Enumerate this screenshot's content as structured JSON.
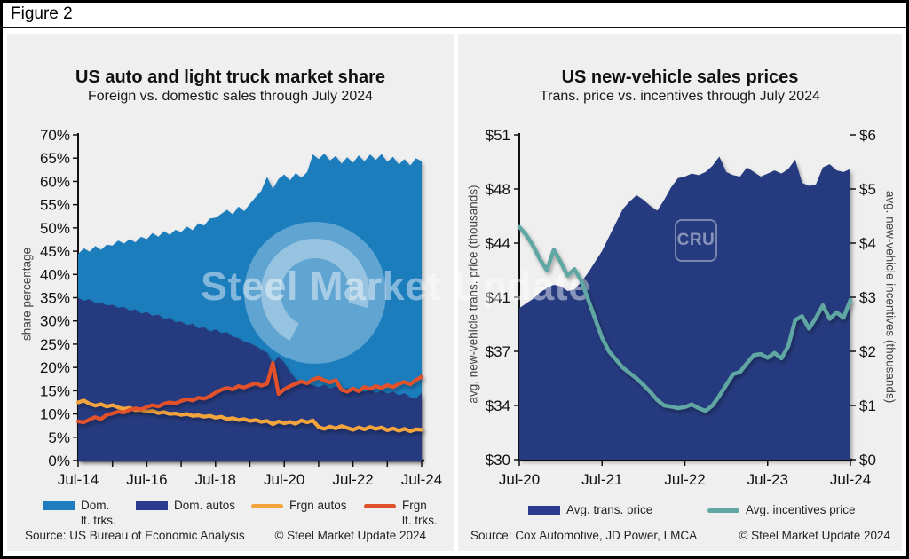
{
  "figure": {
    "label": "Figure 2"
  },
  "watermark": {
    "text": "Steel Market Update",
    "cru_label": "CRU"
  },
  "colors": {
    "panel_bg": "#efefef",
    "dom_lt_trks": "#1e7dbd",
    "dom_autos": "#263a7f",
    "frgn_autos": "#f4a43c",
    "frgn_lt_trks": "#e2512c",
    "trans_price": "#263a7f",
    "incentives": "#60a6a3",
    "axis": "#111111"
  },
  "chart_data": [
    {
      "type": "area",
      "title": "US auto and light truck market share",
      "subtitle": "Foreign vs. domestic sales through July 2024",
      "ylabel": "share percentage",
      "ylim": [
        0,
        70
      ],
      "x_range": [
        "Jul-14",
        "Jul-24"
      ],
      "x_tick_labels": [
        "Jul-14",
        "Jul-16",
        "Jul-18",
        "Jul-20",
        "Jul-22",
        "Jul-24"
      ],
      "y_tick_labels": [
        "0%",
        "5%",
        "10%",
        "15%",
        "20%",
        "25%",
        "30%",
        "35%",
        "40%",
        "45%",
        "50%",
        "55%",
        "60%",
        "65%",
        "70%"
      ],
      "series": [
        {
          "name": "Dom. lt. trks.",
          "kind": "area",
          "color": "#1e7dbd",
          "values": [
            44.4,
            45.6,
            44.9,
            46.1,
            45.3,
            46.4,
            46.2,
            47.3,
            46.6,
            47.6,
            46.9,
            48.1,
            47.6,
            48.9,
            48.1,
            49.3,
            48.5,
            49.6,
            49.1,
            50.3,
            49.5,
            51.0,
            50.5,
            52.0,
            52.2,
            53.0,
            53.9,
            52.9,
            54.6,
            53.6,
            55.2,
            56.6,
            58.0,
            61.0,
            58.4,
            60.5,
            61.5,
            60.2,
            61.8,
            60.8,
            62.0,
            65.8,
            64.8,
            66.0,
            64.5,
            65.5,
            63.8,
            65.2,
            64.0,
            65.6,
            64.3,
            65.8,
            64.6,
            65.9,
            64.2,
            65.3,
            63.6,
            64.8,
            63.4,
            65.0,
            64.3
          ]
        },
        {
          "name": "Dom. autos",
          "kind": "area",
          "color": "#263a7f",
          "values": [
            35.0,
            34.3,
            34.7,
            33.8,
            34.0,
            33.3,
            33.5,
            32.8,
            33.0,
            32.2,
            32.5,
            31.6,
            31.9,
            31.1,
            31.4,
            30.4,
            30.7,
            29.7,
            29.9,
            29.1,
            29.4,
            28.4,
            28.7,
            27.7,
            28.2,
            27.4,
            27.6,
            26.6,
            26.3,
            25.5,
            25.2,
            24.6,
            23.8,
            23.2,
            20.8,
            22.4,
            21.0,
            19.0,
            17.5,
            16.8,
            16.5,
            16.2,
            15.8,
            16.3,
            15.5,
            16.0,
            15.2,
            15.6,
            14.9,
            15.4,
            14.7,
            15.2,
            14.5,
            15.0,
            14.4,
            14.8,
            14.0,
            14.5,
            13.6,
            13.3,
            14.5
          ]
        },
        {
          "name": "Frgn autos",
          "kind": "line",
          "color": "#f4a43c",
          "values": [
            12.5,
            12.9,
            12.2,
            11.8,
            12.1,
            11.6,
            11.9,
            11.4,
            11.1,
            11.3,
            10.8,
            10.9,
            10.5,
            10.7,
            10.2,
            10.4,
            10.0,
            10.1,
            9.8,
            10.0,
            9.6,
            9.7,
            9.4,
            9.6,
            9.2,
            9.4,
            8.9,
            9.1,
            8.7,
            8.9,
            8.5,
            8.7,
            8.3,
            8.5,
            7.8,
            8.4,
            8.0,
            8.3,
            7.9,
            8.6,
            8.2,
            8.6,
            7.2,
            6.8,
            7.3,
            6.9,
            7.4,
            7.0,
            6.6,
            7.1,
            6.7,
            7.2,
            6.8,
            7.1,
            6.5,
            6.9,
            6.4,
            6.8,
            6.3,
            6.7,
            6.6
          ]
        },
        {
          "name": "Frgn lt. trks.",
          "kind": "line",
          "color": "#e2512c",
          "values": [
            8.4,
            8.2,
            8.8,
            9.3,
            8.9,
            9.8,
            10.1,
            10.5,
            10.3,
            10.9,
            11.2,
            11.0,
            11.5,
            11.9,
            11.6,
            12.2,
            12.5,
            12.3,
            12.8,
            13.2,
            12.9,
            13.5,
            13.3,
            13.8,
            14.6,
            15.2,
            15.6,
            15.3,
            16.0,
            15.7,
            16.2,
            16.6,
            16.1,
            16.5,
            21.0,
            14.3,
            15.3,
            16.0,
            16.5,
            17.0,
            16.6,
            17.4,
            17.8,
            17.2,
            16.8,
            17.3,
            15.2,
            14.8,
            15.5,
            14.9,
            15.8,
            15.4,
            16.0,
            15.6,
            16.2,
            15.8,
            16.5,
            16.9,
            16.4,
            17.3,
            18.0
          ]
        }
      ],
      "legend": [
        {
          "label": "Dom.\nlt. trks.",
          "color": "#1e7dbd",
          "kind": "area"
        },
        {
          "label": "Dom. autos",
          "color": "#2b3c8e",
          "kind": "area"
        },
        {
          "label": "Frgn autos",
          "color": "#f4a43c",
          "kind": "line"
        },
        {
          "label": "Frgn\nlt. trks.",
          "color": "#e2512c",
          "kind": "line"
        }
      ],
      "source": "Source: US Bureau of Economic Analysis",
      "copyright": "© Steel Market Update 2024"
    },
    {
      "type": "area",
      "title": "US new-vehicle sales prices",
      "subtitle": "Trans. price vs. incentives through July 2024",
      "ylabel_left": "avg. new-vehicle trans. price (thousands)",
      "ylabel_right": "avg. new-vehicle incentives (thousands)",
      "ylim_left": [
        30,
        51
      ],
      "ylim_right": [
        0,
        6
      ],
      "x_range": [
        "Jul-20",
        "Jul-24"
      ],
      "x_tick_labels": [
        "Jul-20",
        "Jul-21",
        "Jul-22",
        "Jul-23",
        "Jul-24"
      ],
      "y_tick_labels_left": [
        "$30",
        "$34",
        "$37",
        "$41",
        "$44",
        "$48",
        "$51"
      ],
      "y_tick_labels_right": [
        "$0",
        "$1",
        "$2",
        "$3",
        "$4",
        "$5",
        "$6"
      ],
      "series": [
        {
          "name": "Avg. trans. price",
          "kind": "area",
          "axis": "left",
          "color": "#263a7f",
          "values": [
            39.8,
            40.1,
            40.4,
            40.8,
            41.1,
            41.3,
            41.2,
            40.9,
            41.0,
            41.5,
            42.1,
            42.8,
            43.5,
            44.4,
            45.3,
            46.2,
            46.7,
            47.1,
            46.8,
            46.4,
            46.1,
            46.8,
            47.6,
            48.2,
            48.3,
            48.5,
            48.4,
            48.6,
            49.0,
            49.6,
            48.6,
            48.4,
            48.3,
            48.9,
            48.6,
            48.3,
            48.5,
            48.7,
            48.5,
            48.8,
            49.4,
            47.9,
            47.7,
            47.8,
            48.9,
            49.1,
            48.7,
            48.6,
            48.8
          ]
        },
        {
          "name": "Avg. incentives price",
          "kind": "line",
          "axis": "right",
          "color": "#60a6a3",
          "values": [
            4.3,
            4.15,
            3.95,
            3.7,
            3.5,
            3.88,
            3.65,
            3.4,
            3.52,
            3.3,
            2.95,
            2.6,
            2.25,
            2.0,
            1.85,
            1.7,
            1.6,
            1.5,
            1.38,
            1.25,
            1.1,
            1.0,
            0.98,
            0.95,
            0.97,
            1.02,
            0.95,
            0.9,
            1.0,
            1.18,
            1.38,
            1.58,
            1.62,
            1.78,
            1.93,
            1.95,
            1.88,
            1.97,
            1.87,
            2.1,
            2.58,
            2.65,
            2.42,
            2.62,
            2.85,
            2.6,
            2.72,
            2.62,
            2.95
          ]
        }
      ],
      "legend": [
        {
          "label": "Avg. trans. price",
          "color": "#2b3c8e",
          "kind": "area"
        },
        {
          "label": "Avg. incentives price",
          "color": "#60a6a3",
          "kind": "line"
        }
      ],
      "source": "Source: Cox Automotive, JD Power, LMCA",
      "copyright": "© Steel Market Update 2024"
    }
  ]
}
